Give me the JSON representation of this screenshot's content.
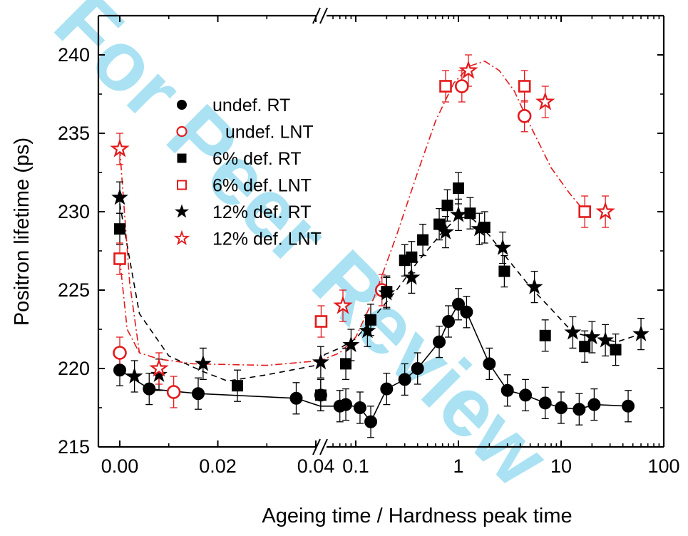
{
  "watermark": {
    "text": "For Peer Review",
    "color": "#00a9e0"
  },
  "chart_data": {
    "type": "scatter",
    "xlabel": "Ageing time / Hardness peak time",
    "ylabel": "Positron lifetime (ps)",
    "ylim": [
      215,
      242.5
    ],
    "y_ticks": [
      215,
      220,
      225,
      230,
      235,
      240
    ],
    "x_axis_broken": true,
    "x_linear_segment": {
      "range": [
        -0.006,
        0.05
      ],
      "ticks": [
        "0.00",
        "0.02",
        "0.04"
      ]
    },
    "x_log_segment": {
      "range": [
        0.045,
        100
      ],
      "ticks": [
        "0.1",
        "1",
        "10",
        "100"
      ]
    },
    "legend_position": "top-left",
    "colors": {
      "black": "#000000",
      "red": "#e31a1c"
    },
    "series": [
      {
        "name": "undef. RT",
        "marker": "circle-filled",
        "color": "#000000",
        "line": "solid",
        "points": [
          [
            0.0,
            219.9
          ],
          [
            0.006,
            218.7
          ],
          [
            0.016,
            218.4
          ],
          [
            0.036,
            218.1
          ],
          [
            0.041,
            218.3
          ],
          [
            0.07,
            217.6
          ],
          [
            0.08,
            217.7
          ],
          [
            0.11,
            217.5
          ],
          [
            0.14,
            216.6
          ],
          [
            0.2,
            218.7
          ],
          [
            0.3,
            219.3
          ],
          [
            0.4,
            220.0
          ],
          [
            0.65,
            221.7
          ],
          [
            0.8,
            223.0
          ],
          [
            1.0,
            224.1
          ],
          [
            1.2,
            223.6
          ],
          [
            2.0,
            220.3
          ],
          [
            3.0,
            218.6
          ],
          [
            4.5,
            218.3
          ],
          [
            7.0,
            217.8
          ],
          [
            10.0,
            217.5
          ],
          [
            15.0,
            217.4
          ],
          [
            21.0,
            217.7
          ],
          [
            45.0,
            217.6
          ]
        ],
        "line_path": [
          [
            0.0,
            219.9
          ],
          [
            0.006,
            218.7
          ],
          [
            0.016,
            218.4
          ],
          [
            0.036,
            218.1
          ],
          [
            0.045,
            217.6
          ],
          [
            0.07,
            217.6
          ],
          [
            0.08,
            217.7
          ],
          [
            0.11,
            217.5
          ],
          [
            0.14,
            216.6
          ],
          [
            0.2,
            218.7
          ],
          [
            0.3,
            219.3
          ],
          [
            0.4,
            220.0
          ],
          [
            0.65,
            221.7
          ],
          [
            0.8,
            223.0
          ],
          [
            1.0,
            224.1
          ],
          [
            1.2,
            223.6
          ],
          [
            2.0,
            220.3
          ],
          [
            3.0,
            218.6
          ],
          [
            4.5,
            218.3
          ],
          [
            7.0,
            217.8
          ],
          [
            10.0,
            217.5
          ],
          [
            15.0,
            217.4
          ],
          [
            21.0,
            217.7
          ],
          [
            45.0,
            217.6
          ]
        ]
      },
      {
        "name": "undef. LNT",
        "marker": "circle-open",
        "color": "#e31a1c",
        "points": [
          [
            0.0,
            221.0
          ],
          [
            0.011,
            218.5
          ],
          [
            0.18,
            225.0
          ],
          [
            1.08,
            238.0
          ],
          [
            4.4,
            236.1
          ]
        ]
      },
      {
        "name": "6% def. RT",
        "marker": "square-filled",
        "color": "#000000",
        "points": [
          [
            0.0,
            228.9
          ],
          [
            0.024,
            218.9
          ],
          [
            0.041,
            218.3
          ],
          [
            0.08,
            220.3
          ],
          [
            0.14,
            223.1
          ],
          [
            0.2,
            224.9
          ],
          [
            0.3,
            226.9
          ],
          [
            0.35,
            227.1
          ],
          [
            0.45,
            228.2
          ],
          [
            0.65,
            229.2
          ],
          [
            0.78,
            230.4
          ],
          [
            1.0,
            231.5
          ],
          [
            1.3,
            229.9
          ],
          [
            1.8,
            229.0
          ],
          [
            2.8,
            226.2
          ],
          [
            7.0,
            222.1
          ],
          [
            17.0,
            221.4
          ],
          [
            34.0,
            221.2
          ]
        ]
      },
      {
        "name": "6% def. LNT",
        "marker": "square-open",
        "color": "#e31a1c",
        "points": [
          [
            0.0,
            227.0
          ],
          [
            0.046,
            223.0
          ],
          [
            0.75,
            238.0
          ],
          [
            4.4,
            238.0
          ],
          [
            17.0,
            230.0
          ]
        ]
      },
      {
        "name": "12% def. RT",
        "marker": "star-filled",
        "color": "#000000",
        "line": "dashed",
        "points": [
          [
            0.0,
            230.9
          ],
          [
            0.003,
            219.5
          ],
          [
            0.008,
            219.6
          ],
          [
            0.017,
            220.3
          ],
          [
            0.041,
            220.4
          ],
          [
            0.09,
            221.5
          ],
          [
            0.13,
            222.4
          ],
          [
            0.2,
            224.8
          ],
          [
            0.35,
            225.8
          ],
          [
            0.75,
            228.7
          ],
          [
            1.0,
            229.8
          ],
          [
            1.6,
            228.9
          ],
          [
            2.7,
            227.7
          ],
          [
            5.5,
            225.2
          ],
          [
            13.0,
            222.3
          ],
          [
            20.0,
            222.0
          ],
          [
            27.0,
            221.8
          ],
          [
            60.0,
            222.2
          ]
        ],
        "line_path": [
          [
            0.0,
            230.5
          ],
          [
            0.004,
            223.5
          ],
          [
            0.01,
            220.8
          ],
          [
            0.017,
            219.8
          ],
          [
            0.022,
            219.2
          ],
          [
            0.03,
            219.6
          ],
          [
            0.04,
            220.2
          ],
          [
            0.05,
            220.9
          ],
          [
            0.07,
            221.3
          ],
          [
            0.1,
            221.9
          ],
          [
            0.16,
            223.5
          ],
          [
            0.25,
            225.0
          ],
          [
            0.4,
            226.8
          ],
          [
            0.7,
            228.7
          ],
          [
            1.0,
            229.7
          ],
          [
            1.4,
            229.5
          ],
          [
            2.0,
            228.5
          ],
          [
            3.0,
            227.0
          ],
          [
            5.0,
            225.2
          ],
          [
            8.0,
            223.8
          ],
          [
            13.0,
            222.3
          ],
          [
            20.0,
            222.0
          ],
          [
            35.0,
            221.7
          ],
          [
            60.0,
            222.2
          ]
        ]
      },
      {
        "name": "12% def. LNT",
        "marker": "star-open",
        "color": "#e31a1c",
        "line": "dash-dot",
        "points": [
          [
            0.0,
            234.0
          ],
          [
            0.008,
            220.0
          ],
          [
            0.075,
            224.0
          ],
          [
            1.25,
            239.0
          ],
          [
            7.0,
            237.0
          ],
          [
            27.0,
            230.0
          ]
        ],
        "line_path": [
          [
            0.0,
            234.0
          ],
          [
            0.002,
            225.5
          ],
          [
            0.004,
            221.0
          ],
          [
            0.008,
            220.6
          ],
          [
            0.015,
            220.3
          ],
          [
            0.03,
            220.2
          ],
          [
            0.045,
            220.5
          ],
          [
            0.07,
            221.0
          ],
          [
            0.1,
            222.0
          ],
          [
            0.15,
            224.5
          ],
          [
            0.25,
            228.5
          ],
          [
            0.4,
            232.5
          ],
          [
            0.6,
            235.8
          ],
          [
            0.9,
            238.2
          ],
          [
            1.3,
            239.3
          ],
          [
            1.8,
            239.6
          ],
          [
            2.5,
            239.0
          ],
          [
            3.5,
            237.7
          ],
          [
            5.0,
            235.5
          ],
          [
            8.0,
            232.8
          ],
          [
            12.0,
            231.2
          ],
          [
            17.0,
            230.0
          ]
        ]
      },
      {
        "name": "",
        "marker": "none",
        "color": "#e31a1c",
        "line": "dash-dot",
        "points": [],
        "line_path": [
          [
            0.0,
            227.0
          ],
          [
            0.0015,
            222.5
          ],
          [
            0.004,
            221.0
          ]
        ]
      }
    ]
  }
}
